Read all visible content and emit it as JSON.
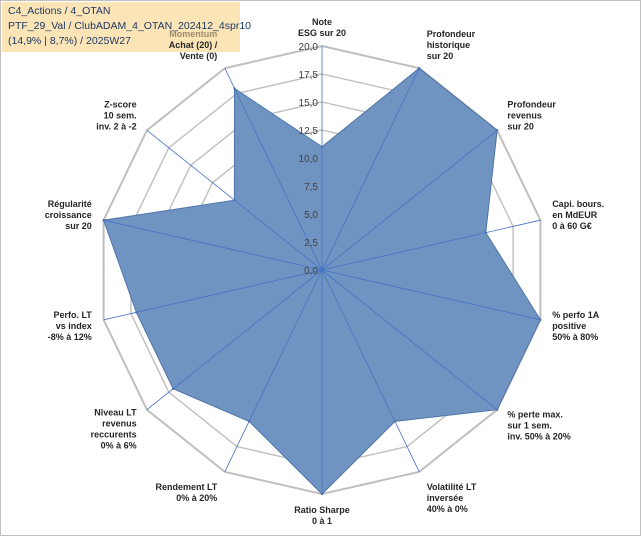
{
  "header": {
    "line1": "C4_Actions / 4_OTAN",
    "line2": "PTF_29_Val / ClubADAM_4_OTAN_202412_4spr10",
    "line3": "(14,9% | 8,7%) / 2025W27"
  },
  "chart_data": {
    "type": "radar",
    "title": "",
    "rlim": [
      0,
      20
    ],
    "radial_ticks": [
      "0,0",
      "2,5",
      "5,0",
      "7,5",
      "10,0",
      "12,5",
      "15,0",
      "17,5",
      "20,0"
    ],
    "grid": true,
    "colors": {
      "fill": "#7094c2",
      "stroke": "#4f74a8",
      "grid": "#bfbfbf",
      "axis": "#4472c4",
      "highlight": "#9c8c6c"
    },
    "axes": [
      {
        "lines": [
          "Note",
          "ESG sur 20"
        ],
        "value": 11
      },
      {
        "lines": [
          "Profondeur",
          "historique",
          "sur 20"
        ],
        "value": 20
      },
      {
        "lines": [
          "Profondeur",
          "revenus",
          "sur 20"
        ],
        "value": 20
      },
      {
        "lines": [
          "Capi. bours.",
          "en MdEUR",
          "0 à 60 G€"
        ],
        "value": 15
      },
      {
        "lines": [
          "% perfo 1A",
          "positive",
          "50% à 80%"
        ],
        "value": 20
      },
      {
        "lines": [
          "% perte max.",
          "sur 1 sem.",
          "inv. 50% à 20%"
        ],
        "value": 20
      },
      {
        "lines": [
          "Volatilité LT",
          "inversée",
          "40% à 0%"
        ],
        "value": 15
      },
      {
        "lines": [
          "Ratio Sharpe",
          "0 à 1"
        ],
        "value": 20
      },
      {
        "lines": [
          "Rendement LT",
          "0% à 20%"
        ],
        "value": 15
      },
      {
        "lines": [
          "Niveau LT",
          "revenus",
          "reccurents",
          "0% à 6%"
        ],
        "value": 17
      },
      {
        "lines": [
          "Perfo. LT",
          "vs index",
          "-8% à 12%"
        ],
        "value": 17
      },
      {
        "lines": [
          "Régularité",
          "croissance",
          "sur 20"
        ],
        "value": 20
      },
      {
        "lines": [
          "Z-score",
          "10 sem.",
          "inv. 2 à -2"
        ],
        "value": 10
      },
      {
        "lines": [
          "Momentum",
          "Achat (20) /",
          "Vente (0)"
        ],
        "highlight_first": true,
        "value": 18
      }
    ]
  }
}
